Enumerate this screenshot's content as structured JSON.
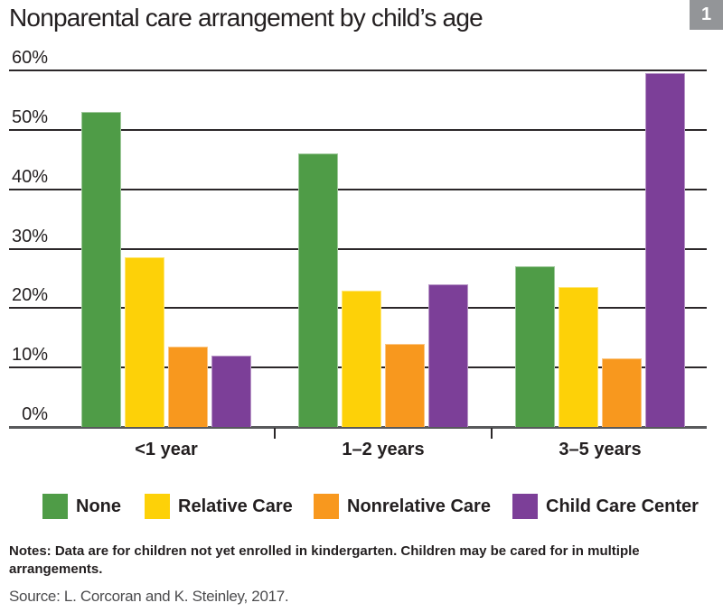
{
  "title": "Nonparental care arrangement by child’s age",
  "figure_number": "1",
  "chart_data": {
    "type": "bar",
    "categories": [
      "<1 year",
      "1–2 years",
      "3–5 years"
    ],
    "series": [
      {
        "name": "None",
        "color": "#4f9c47",
        "values": [
          53,
          46,
          27
        ]
      },
      {
        "name": "Relative Care",
        "color": "#fdd108",
        "values": [
          28.5,
          23,
          23.5
        ]
      },
      {
        "name": "Nonrelative Care",
        "color": "#f8981e",
        "values": [
          13.5,
          14,
          11.5
        ]
      },
      {
        "name": "Child Care Center",
        "color": "#7c3f98",
        "values": [
          12,
          24,
          59.5
        ]
      }
    ],
    "title": "Nonparental care arrangement by child’s age",
    "xlabel": "",
    "ylabel": "",
    "ylim": [
      0,
      60
    ],
    "y_ticks": [
      "0%",
      "10%",
      "20%",
      "30%",
      "40%",
      "50%",
      "60%"
    ],
    "grid": true,
    "legend_position": "bottom"
  },
  "notes": "Notes: Data are for children not yet enrolled in kindergarten. Children may be cared for in multiple arrangements.",
  "source": "Source: L. Corcoran and K. Steinley, 2017."
}
